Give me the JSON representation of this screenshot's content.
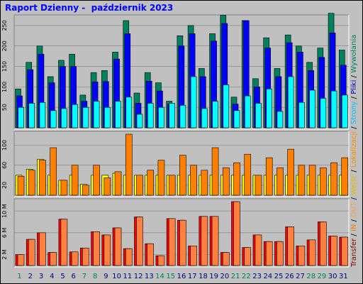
{
  "title": "Raport Dzienny -  październik 2023",
  "side_label": {
    "transfer": "Transfer",
    "in": "IN",
    "out": "OUT",
    "visits": "Wejść",
    "sites": "Lokalizacji",
    "pages": "Strony",
    "files": "Pliki",
    "hits": "Wywołania",
    "separator": "/"
  },
  "colors": {
    "frame_bg": "#c0c0c0",
    "title": "#0000ff",
    "hits": "#00805c",
    "files": "#0000ff",
    "pages": "#00ffff",
    "visits": "#ffff00",
    "sites": "#ff8000",
    "in": "#ff0000",
    "out": "#ff8040",
    "weekday_label": "#000080",
    "weekend_label": "#00805c"
  },
  "chart_data": [
    {
      "type": "bar",
      "panel": "top",
      "categories": [
        "1",
        "2",
        "3",
        "4",
        "5",
        "6",
        "7",
        "8",
        "9",
        "10",
        "11",
        "12",
        "13",
        "14",
        "15",
        "16",
        "17",
        "18",
        "19",
        "20",
        "21",
        "22",
        "23",
        "24",
        "25",
        "26",
        "27",
        "28",
        "29",
        "30",
        "31"
      ],
      "weekend_days": [
        1,
        7,
        8,
        14,
        15,
        21,
        22,
        28,
        29
      ],
      "yticks": [
        50,
        100,
        150,
        200,
        250
      ],
      "ylim": [
        0,
        262
      ],
      "series": [
        {
          "name": "Wywołania",
          "values": [
            95,
            160,
            200,
            125,
            165,
            180,
            80,
            135,
            140,
            185,
            262,
            85,
            135,
            110,
            65,
            225,
            250,
            145,
            230,
            275,
            75,
            262,
            120,
            220,
            145,
            227,
            200,
            160,
            195,
            280,
            190
          ]
        },
        {
          "name": "Pliki",
          "values": [
            78,
            142,
            180,
            110,
            150,
            150,
            65,
            112,
            113,
            168,
            230,
            60,
            114,
            90,
            58,
            200,
            230,
            125,
            212,
            255,
            58,
            262,
            100,
            195,
            125,
            208,
            185,
            140,
            172,
            232,
            153
          ]
        },
        {
          "name": "Strony",
          "values": [
            50,
            60,
            62,
            42,
            47,
            57,
            50,
            65,
            50,
            65,
            75,
            33,
            60,
            50,
            60,
            55,
            125,
            47,
            65,
            105,
            42,
            78,
            60,
            95,
            40,
            125,
            62,
            92,
            72,
            90,
            80
          ]
        }
      ]
    },
    {
      "type": "bar",
      "panel": "middle",
      "categories": [
        "1",
        "2",
        "3",
        "4",
        "5",
        "6",
        "7",
        "8",
        "9",
        "10",
        "11",
        "12",
        "13",
        "14",
        "15",
        "16",
        "17",
        "18",
        "19",
        "20",
        "21",
        "22",
        "23",
        "24",
        "25",
        "26",
        "27",
        "28",
        "29",
        "30",
        "31"
      ],
      "yticks": [
        20,
        60,
        100
      ],
      "ylim": [
        0,
        122
      ],
      "series": [
        {
          "name": "Wejść",
          "values": [
            40,
            52,
            72,
            40,
            30,
            40,
            22,
            40,
            40,
            44,
            40,
            40,
            40,
            40,
            40,
            40,
            40,
            40,
            40,
            40,
            40,
            40,
            40,
            40,
            40,
            40,
            40,
            40,
            40,
            40,
            40
          ]
        },
        {
          "name": "Lokalizacji",
          "values": [
            38,
            50,
            70,
            95,
            30,
            60,
            20,
            60,
            35,
            47,
            122,
            40,
            50,
            70,
            40,
            80,
            60,
            50,
            95,
            55,
            65,
            82,
            40,
            75,
            55,
            92,
            60,
            60,
            55,
            65,
            75
          ]
        }
      ]
    },
    {
      "type": "bar",
      "panel": "bottom",
      "categories": [
        "1",
        "2",
        "3",
        "4",
        "5",
        "6",
        "7",
        "8",
        "9",
        "10",
        "11",
        "12",
        "13",
        "14",
        "15",
        "16",
        "17",
        "18",
        "19",
        "20",
        "21",
        "22",
        "23",
        "24",
        "25",
        "26",
        "27",
        "28",
        "29",
        "30",
        "31"
      ],
      "yticks": [
        "2 M",
        "6 M",
        "10 M"
      ],
      "ylim_mb": [
        0,
        11.7
      ],
      "series": [
        {
          "name": "IN",
          "values": [
            2.0,
            4.8,
            6.0,
            2.4,
            8.5,
            2.5,
            3.2,
            6.2,
            5.6,
            6.9,
            3.1,
            8.9,
            4.0,
            1.8,
            8.6,
            8.3,
            3.6,
            9.0,
            9.0,
            2.4,
            11.7,
            3.3,
            5.6,
            4.4,
            4.4,
            7.1,
            3.6,
            4.7,
            8.0,
            5.4,
            5.2
          ]
        },
        {
          "name": "OUT",
          "values": [
            2.0,
            4.8,
            6.0,
            2.4,
            8.5,
            2.5,
            3.2,
            6.2,
            5.6,
            6.9,
            3.1,
            8.9,
            4.0,
            1.8,
            8.6,
            8.3,
            3.6,
            9.0,
            9.0,
            2.4,
            11.7,
            3.3,
            5.6,
            4.4,
            4.4,
            7.1,
            3.6,
            4.7,
            8.0,
            5.4,
            5.2
          ]
        }
      ]
    }
  ]
}
